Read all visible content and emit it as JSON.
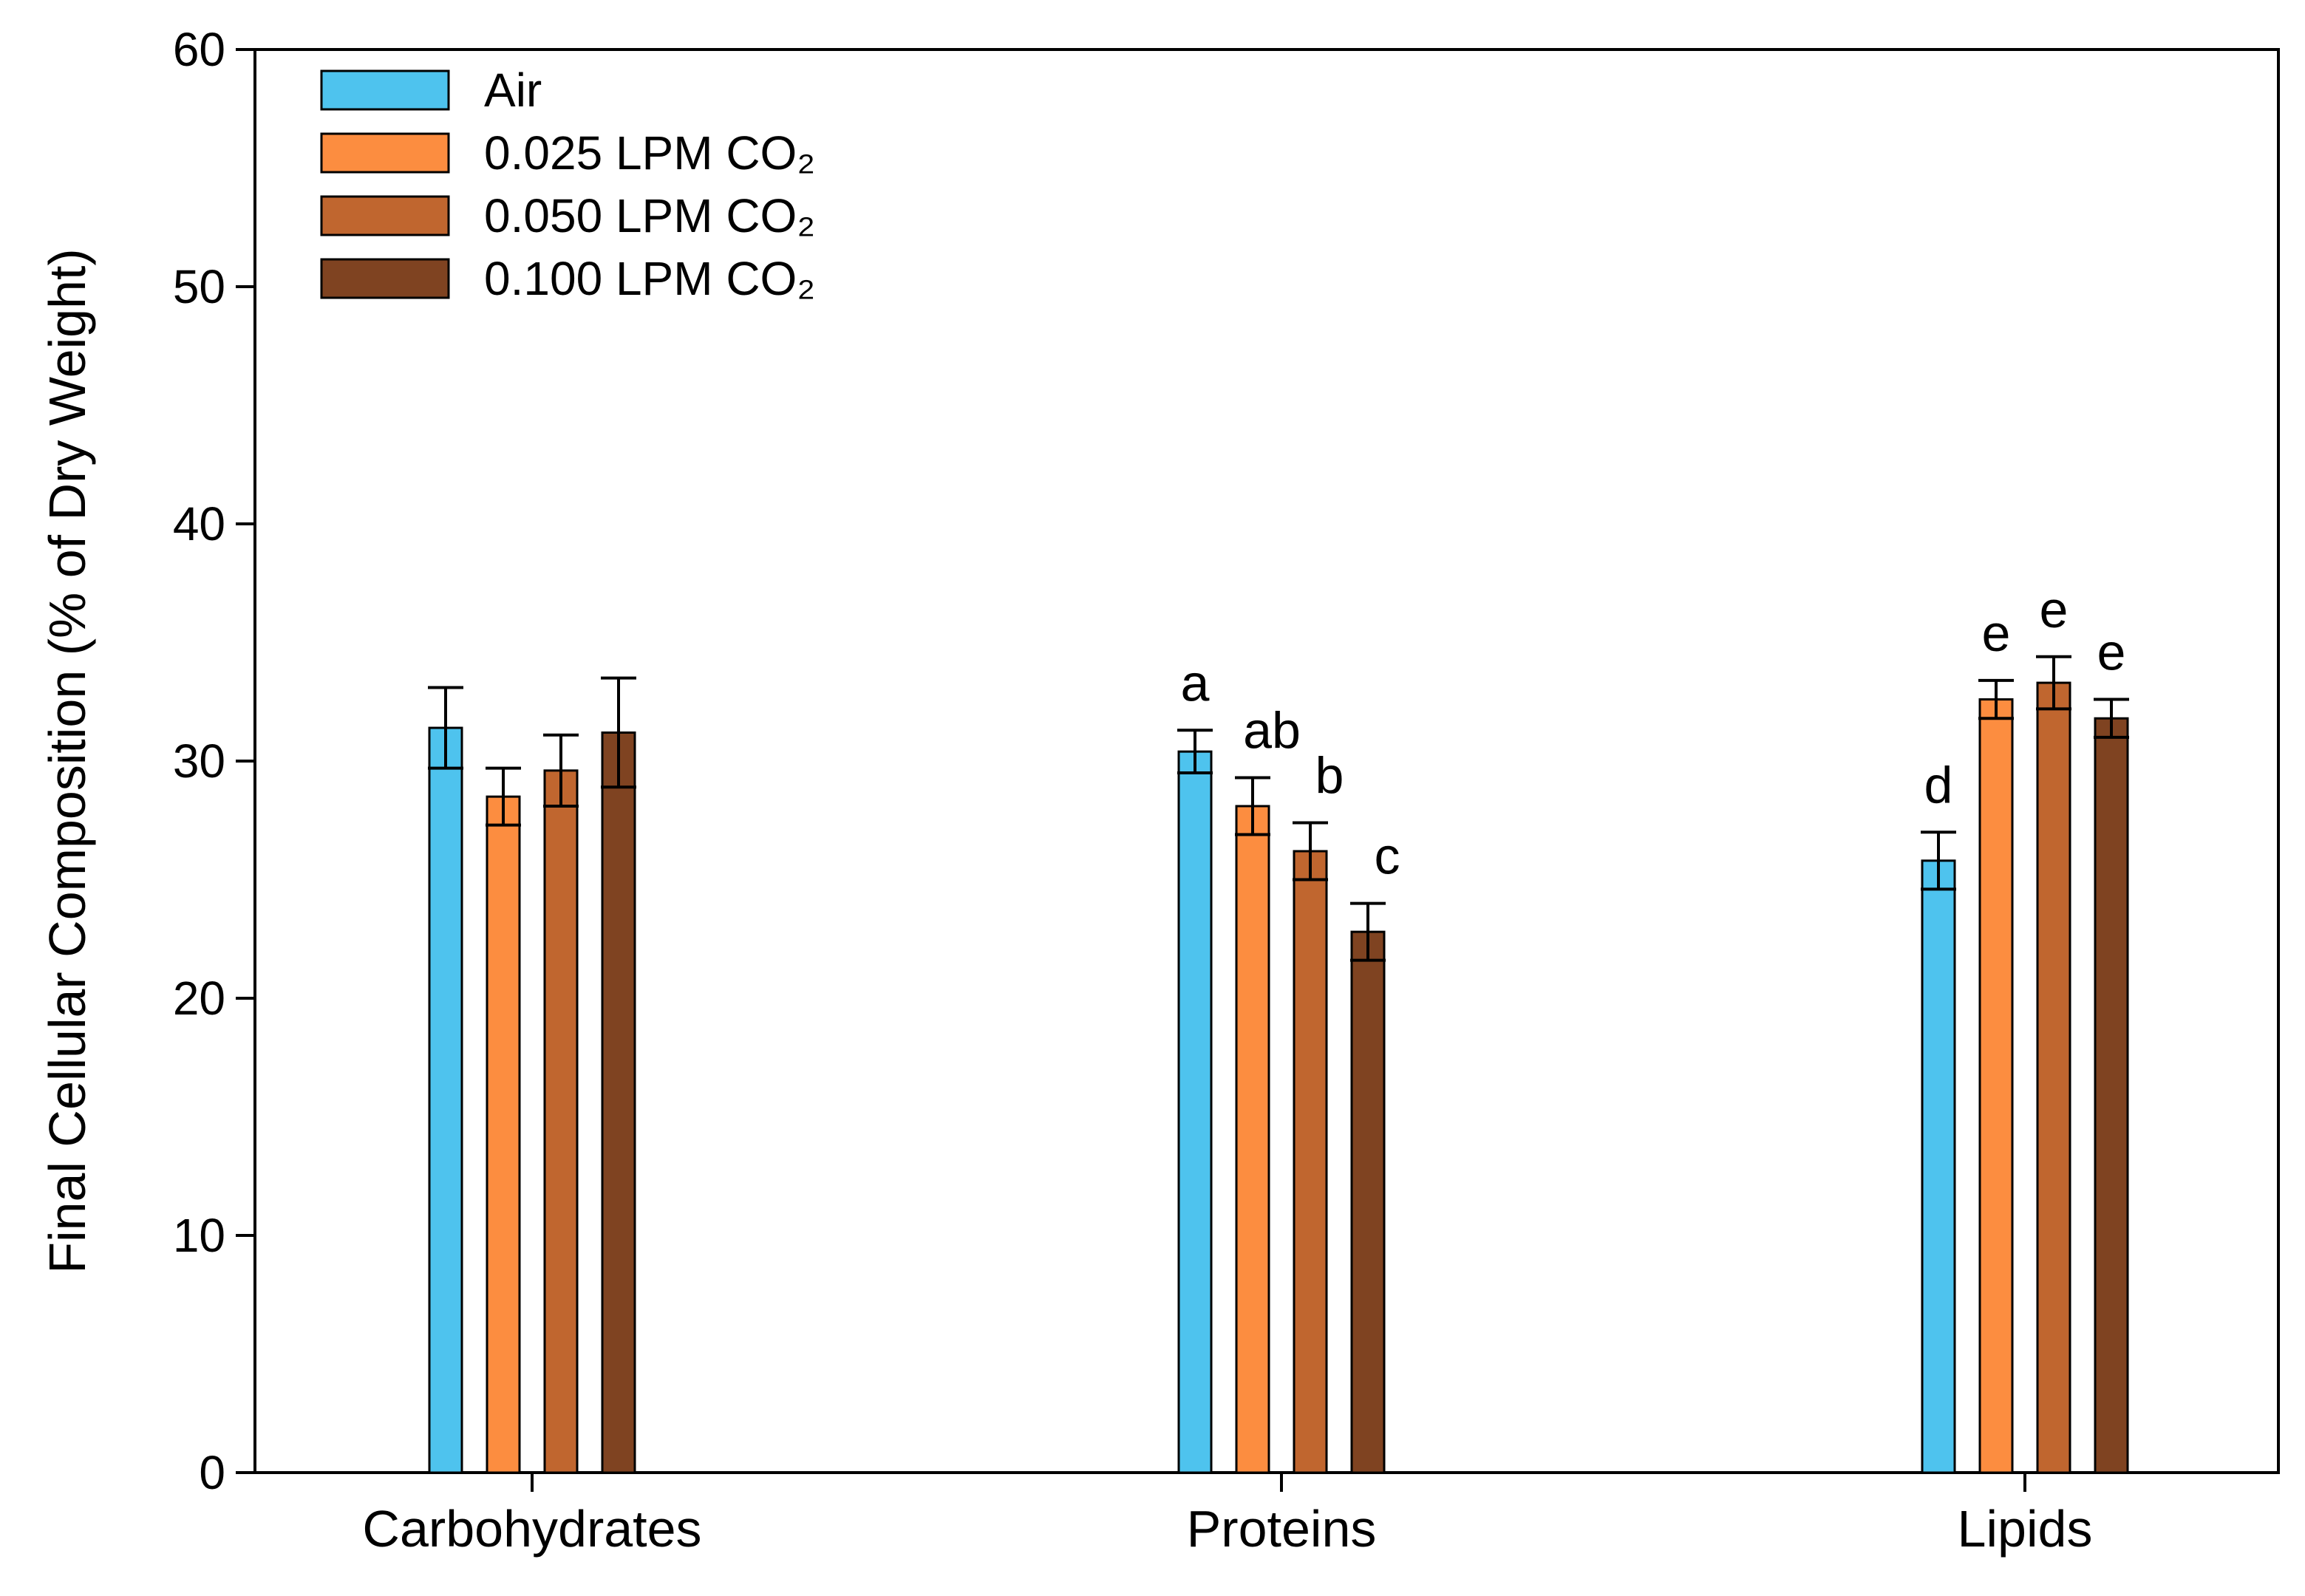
{
  "chart_data": {
    "type": "bar",
    "title": "",
    "xlabel": "",
    "ylabel": "Final Cellular Composition (% of Dry Weight)",
    "ylim": [
      0,
      60
    ],
    "yticks": [
      0,
      10,
      20,
      30,
      40,
      50,
      60
    ],
    "grid": false,
    "legend_position": "top-left",
    "categories": [
      "Carbohydrates",
      "Proteins",
      "Lipids"
    ],
    "series": [
      {
        "name": "Air",
        "color": "#4ec3ee",
        "values": [
          31.4,
          30.4,
          25.8
        ],
        "errors": [
          1.7,
          0.9,
          1.2
        ],
        "sig_labels": [
          "",
          "a",
          "d"
        ]
      },
      {
        "name": "0.025 LPM CO₂",
        "color": "#fc8d40",
        "values": [
          28.5,
          28.1,
          32.6
        ],
        "errors": [
          1.2,
          1.2,
          0.8
        ],
        "sig_labels": [
          "",
          "ab",
          "e"
        ]
      },
      {
        "name": "0.050 LPM CO₂",
        "color": "#c0662f",
        "values": [
          29.6,
          26.2,
          33.3
        ],
        "errors": [
          1.5,
          1.2,
          1.1
        ],
        "sig_labels": [
          "",
          "b",
          "e"
        ]
      },
      {
        "name": "0.100 LPM CO₂",
        "color": "#7f4321",
        "values": [
          31.2,
          22.8,
          31.8
        ],
        "errors": [
          2.3,
          1.2,
          0.8
        ],
        "sig_labels": [
          "",
          "c",
          "e"
        ]
      }
    ]
  }
}
